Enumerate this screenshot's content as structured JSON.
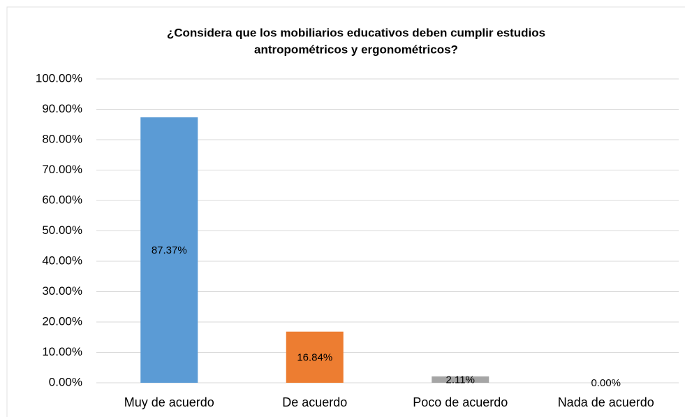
{
  "chart_data": {
    "type": "bar",
    "title": [
      "¿Considera que los mobiliarios educativos deben cumplir estudios",
      "antropométricos y ergonométricos?"
    ],
    "categories": [
      "Muy de acuerdo",
      "De acuerdo",
      "Poco de acuerdo",
      "Nada de acuerdo"
    ],
    "values": [
      87.37,
      16.84,
      2.11,
      0
    ],
    "value_labels": [
      "87.37%",
      "16.84%",
      "2.11%",
      "0.00%"
    ],
    "colors": [
      "#5b9bd5",
      "#ed7d31",
      "#a5a5a5",
      "#ffc000"
    ],
    "ylim": [
      0,
      100
    ],
    "yticks": [
      {
        "value": 0,
        "label": "0.00%"
      },
      {
        "value": 10,
        "label": "10.00%"
      },
      {
        "value": 20,
        "label": "20.00%"
      },
      {
        "value": 30,
        "label": "30.00%"
      },
      {
        "value": 40,
        "label": "40.00%"
      },
      {
        "value": 50,
        "label": "50.00%"
      },
      {
        "value": 60,
        "label": "60.00%"
      },
      {
        "value": 70,
        "label": "70.00%"
      },
      {
        "value": 80,
        "label": "80.00%"
      },
      {
        "value": 90,
        "label": "90.00%"
      },
      {
        "value": 100,
        "label": "100.00%"
      }
    ],
    "grid": true
  }
}
